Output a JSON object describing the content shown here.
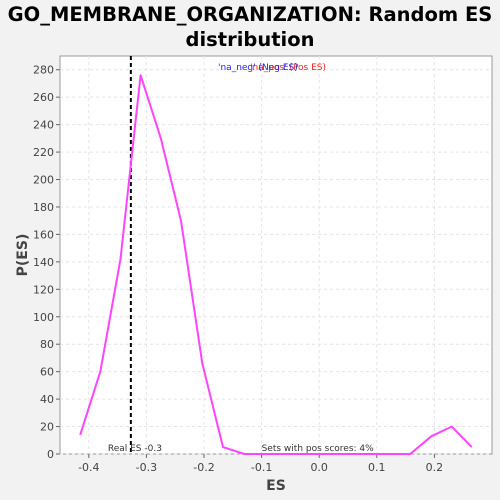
{
  "chart_data": {
    "type": "line",
    "title_line1": "GO_MEMBRANE_ORGANIZATION: Random ES",
    "title_line2": "distribution",
    "xlabel": "ES",
    "ylabel": "P(ES)",
    "xlim": [
      -0.45,
      0.3
    ],
    "ylim": [
      0,
      290
    ],
    "xticks": [
      -0.4,
      -0.3,
      -0.2,
      -0.1,
      0.0,
      0.1,
      0.2
    ],
    "xtick_labels": [
      "-0.4",
      "-0.3",
      "-0.2",
      "-0.1",
      "0.0",
      "0.1",
      "0.2"
    ],
    "yticks": [
      0,
      20,
      40,
      60,
      80,
      100,
      120,
      140,
      160,
      180,
      200,
      220,
      240,
      260,
      280
    ],
    "ytick_labels": [
      "0",
      "20",
      "40",
      "60",
      "80",
      "100",
      "120",
      "140",
      "160",
      "180",
      "200",
      "220",
      "240",
      "260",
      "280"
    ],
    "grid": true,
    "series": [
      {
        "color": "#ff44ff",
        "x": [
          -0.415,
          -0.38,
          -0.345,
          -0.31,
          -0.275,
          -0.24,
          -0.203,
          -0.167,
          -0.13,
          -0.095,
          -0.06,
          -0.025,
          0.01,
          0.048,
          0.085,
          0.12,
          0.158,
          0.195,
          0.23,
          0.265
        ],
        "y": [
          14,
          60,
          142,
          276,
          230,
          170,
          66,
          5,
          0,
          0,
          0,
          0,
          0,
          0,
          0,
          0,
          0,
          13,
          20,
          5
        ]
      }
    ],
    "real_es": {
      "x": -0.327,
      "label": "Real ES -0.3"
    },
    "pos_scores_label": "Sets with pos scores: 4%",
    "legend": {
      "neg_label": "'na_neg' (Neg ES)",
      "pos_label": "'na_pos' (Pos ES)",
      "neg_color": "#2222dd",
      "pos_color": "#ee2222",
      "position": "top"
    }
  }
}
